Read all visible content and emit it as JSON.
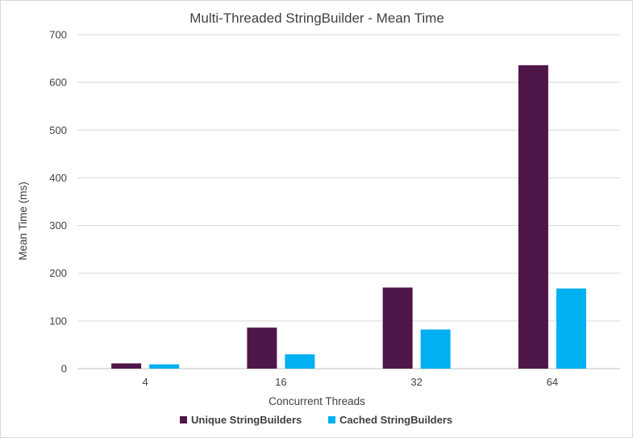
{
  "chart_data": {
    "type": "bar",
    "title": "Multi-Threaded StringBuilder - Mean Time",
    "xlabel": "Concurrent Threads",
    "ylabel": "Mean Time (ms)",
    "categories": [
      "4",
      "16",
      "32",
      "64"
    ],
    "ylim": [
      0,
      700
    ],
    "yticks": [
      0,
      100,
      200,
      300,
      400,
      500,
      600,
      700
    ],
    "grid": true,
    "legend_position": "bottom",
    "series": [
      {
        "name": "Unique StringBuilders",
        "color": "#4f1649",
        "values": [
          11,
          86,
          170,
          636
        ]
      },
      {
        "name": "Cached StringBuilders",
        "color": "#00b0f0",
        "values": [
          9,
          30,
          82,
          168
        ]
      }
    ]
  }
}
